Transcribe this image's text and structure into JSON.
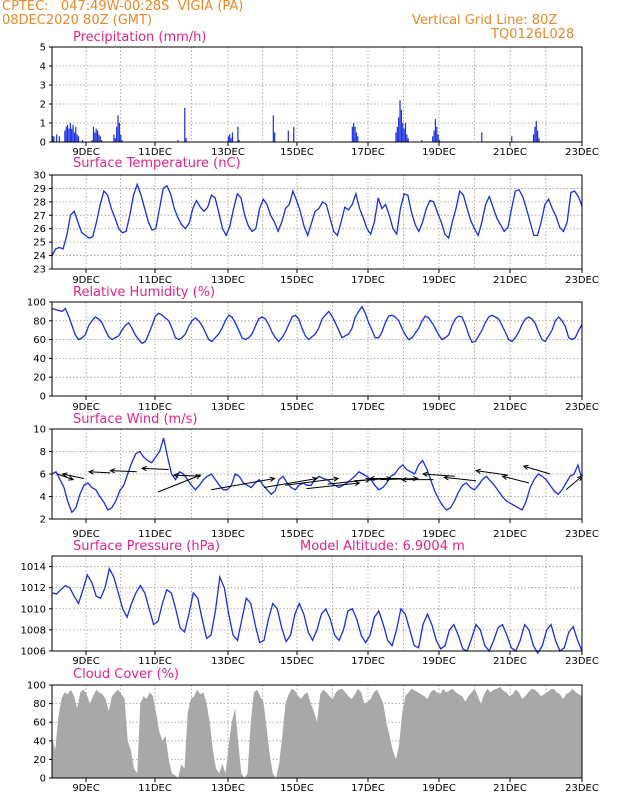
{
  "header": {
    "line1": "CPTEC:   047:49W-00:28S  VIGIA (PA)",
    "line2": "08DEC2020 80Z (GMT)",
    "right1": "Vertical Grid Line: 80Z",
    "right2": "TQ0126L028"
  },
  "x_ticks": [
    "9DEC",
    "11DEC",
    "13DEC",
    "15DEC",
    "17DEC",
    "19DEC",
    "21DEC",
    "23DEC"
  ],
  "chart_data": [
    {
      "type": "bar",
      "title": "Precipitation (mm/h)",
      "ylim": [
        0,
        5
      ],
      "yticks": [
        0,
        1,
        2,
        3,
        4,
        5
      ],
      "color": "#1a2fe0",
      "values": [
        0.3,
        0.3,
        0.0,
        0.4,
        0.0,
        0.3,
        0.0,
        0.0,
        0.0,
        0.6,
        0.8,
        0.9,
        0.7,
        1.0,
        0.7,
        0.9,
        0.5,
        0.8,
        0.4,
        0.3,
        0.0,
        0.0,
        0.1,
        0.0,
        0.0,
        0.0,
        0.0,
        0.0,
        0.0,
        0.1,
        0.8,
        0.5,
        0.7,
        0.6,
        0.4,
        0.3,
        0.1,
        0.0,
        0.0,
        0.0,
        0.0,
        0.0,
        0.0,
        0.0,
        0.0,
        0.4,
        0.2,
        0.8,
        1.4,
        1.0,
        0.4,
        0.1,
        0.0,
        0.0,
        0.0,
        0.0,
        0.0,
        0.0,
        0.0,
        0.0,
        0.0,
        0.0,
        0.0,
        0.0,
        0.0,
        0.0,
        0.0,
        0.0,
        0.0,
        0.0,
        0.0,
        0.0,
        0.0,
        0.0,
        0.0,
        0.0,
        0.0,
        0.0,
        0.0,
        0.0,
        0.0,
        0.0,
        0.0,
        0.0,
        0.0,
        0.0,
        0.0,
        0.0,
        0.0,
        0.0,
        0.0,
        0.0,
        0.1,
        0.0,
        0.0,
        0.0,
        0.0,
        1.8,
        0.2,
        0.0,
        0.0,
        0.0,
        0.0,
        0.0,
        0.0,
        0.0,
        0.0,
        0.0,
        0.0,
        0.0,
        0.0,
        0.0,
        0.0,
        0.0,
        0.0,
        0.0,
        0.0,
        0.0,
        0.0,
        0.0,
        0.0,
        0.0,
        0.0,
        0.0,
        0.0,
        0.0,
        0.0,
        0.0,
        0.0,
        0.3,
        0.4,
        0.2,
        0.5,
        0.0,
        0.0,
        0.0,
        0.8,
        0.1,
        0.0,
        0.0,
        0.0,
        0.0,
        0.0,
        0.0,
        0.0,
        0.0,
        0.0,
        0.0,
        0.0,
        0.0,
        0.0,
        0.0,
        0.0,
        0.0,
        0.0,
        0.0,
        0.0,
        0.0,
        0.0,
        0.0,
        0.0,
        0.0,
        1.4,
        0.5,
        0.0,
        0.0,
        0.0,
        0.0,
        0.0,
        0.0,
        0.0,
        0.0,
        0.0,
        0.6,
        0.0,
        0.0,
        0.0,
        0.8,
        0.0,
        0.0,
        0.0,
        0.0,
        0.0,
        0.0,
        0.0,
        0.0,
        0.0,
        0.0,
        0.0,
        0.0,
        0.0,
        0.0,
        0.0,
        0.0,
        0.0,
        0.0,
        0.0,
        0.0,
        0.0,
        0.0,
        0.0,
        0.0,
        0.0,
        0.0,
        0.0,
        0.0,
        0.0,
        0.0,
        0.0,
        0.0,
        0.0,
        0.0,
        0.0,
        0.0,
        0.0,
        0.0,
        0.0,
        0.0,
        0.0,
        0.0,
        0.8,
        1.0,
        0.8,
        0.5,
        0.3,
        0.0,
        0.0,
        0.0,
        0.0,
        0.0,
        0.0,
        0.0,
        0.0,
        0.0,
        0.0,
        0.0,
        0.0,
        0.0,
        0.0,
        0.0,
        0.0,
        0.0,
        0.0,
        0.0,
        0.0,
        0.0,
        0.0,
        0.0,
        0.0,
        0.0,
        0.0,
        0.0,
        0.5,
        0.8,
        1.3,
        2.2,
        1.7,
        1.0,
        0.7,
        1.0,
        0.4,
        0.2,
        0.0,
        0.0,
        0.0,
        0.0,
        0.0,
        0.0,
        0.0,
        0.0,
        0.0,
        0.1,
        0.0,
        0.0,
        0.0,
        0.0,
        0.0,
        0.0,
        0.0,
        0.3,
        0.6,
        1.2,
        0.8,
        0.4,
        0.1,
        0.0,
        0.0,
        0.0,
        0.0,
        0.0,
        0.0,
        0.0,
        0.0,
        0.0,
        0.0,
        0.0,
        0.0,
        0.0,
        0.0,
        0.0,
        0.0,
        0.0,
        0.0,
        0.0,
        0.0,
        0.0,
        0.0,
        0.0,
        0.0,
        0.0,
        0.0,
        0.0,
        0.0,
        0.0,
        0.0,
        0.5,
        0.0,
        0.0,
        0.0,
        0.0,
        0.0,
        0.0,
        0.0,
        0.0,
        0.0,
        0.0,
        0.0,
        0.0,
        0.0,
        0.0,
        0.0,
        0.0,
        0.0,
        0.0,
        0.0,
        0.0,
        0.0,
        0.3,
        0.0,
        0.0,
        0.0,
        0.0,
        0.0,
        0.0,
        0.0,
        0.0,
        0.0,
        0.0,
        0.0,
        0.0,
        0.0,
        0.0,
        0.0,
        0.4,
        0.8,
        1.1,
        0.6,
        0.2,
        0.0,
        0.0,
        0.0,
        0.0,
        0.0,
        0.0,
        0.0,
        0.0,
        0.0,
        0.0,
        0.0,
        0.0,
        0.0,
        0.0,
        0.0,
        0.0,
        0.0,
        0.0,
        0.0,
        0.0,
        0.0,
        0.0,
        0.0,
        0.0,
        0.0,
        0.0,
        0.0,
        0.0,
        0.0,
        0.0,
        0.0
      ]
    },
    {
      "type": "line",
      "title": "Surface Temperature (nC)",
      "ylim": [
        23,
        30
      ],
      "yticks": [
        23,
        24,
        25,
        26,
        27,
        28,
        29,
        30
      ],
      "color": "#1a2fe0",
      "values": [
        24.0,
        24.5,
        24.6,
        24.5,
        25.5,
        27.0,
        27.3,
        26.5,
        25.7,
        25.5,
        25.3,
        25.4,
        26.5,
        27.8,
        28.8,
        28.5,
        27.5,
        26.8,
        26.0,
        25.7,
        25.8,
        27.0,
        28.5,
        29.3,
        28.5,
        27.5,
        26.5,
        25.9,
        26.0,
        27.5,
        29.0,
        29.2,
        28.6,
        27.5,
        26.8,
        26.3,
        26.0,
        26.4,
        27.5,
        28.1,
        27.6,
        27.3,
        27.6,
        28.5,
        28.3,
        27.2,
        26.0,
        25.5,
        26.2,
        27.5,
        28.6,
        28.3,
        27.0,
        26.2,
        25.8,
        26.0,
        27.5,
        28.2,
        27.8,
        27.0,
        26.5,
        25.8,
        26.5,
        27.5,
        27.8,
        28.8,
        28.1,
        27.3,
        26.2,
        25.5,
        26.4,
        27.3,
        27.5,
        28.0,
        27.8,
        26.8,
        25.8,
        25.5,
        26.5,
        27.6,
        27.4,
        27.8,
        28.6,
        27.5,
        26.8,
        26.0,
        25.6,
        26.5,
        28.3,
        27.5,
        27.8,
        27.0,
        26.0,
        25.6,
        27.5,
        28.6,
        28.5,
        27.2,
        26.3,
        25.8,
        26.5,
        27.5,
        28.1,
        28.0,
        27.2,
        26.5,
        25.6,
        25.3,
        26.5,
        27.5,
        28.8,
        28.5,
        27.5,
        26.6,
        26.0,
        25.5,
        26.5,
        27.8,
        28.4,
        27.6,
        26.8,
        26.3,
        25.8,
        26.1,
        27.5,
        28.8,
        28.9,
        28.4,
        27.5,
        26.5,
        25.5,
        25.5,
        26.5,
        27.8,
        28.2,
        27.5,
        26.9,
        26.1,
        25.8,
        26.5,
        28.7,
        28.8,
        28.4,
        27.7
      ]
    },
    {
      "type": "line",
      "title": "Relative Humidity (%)",
      "ylim": [
        0,
        100
      ],
      "yticks": [
        0,
        20,
        40,
        60,
        80,
        100
      ],
      "color": "#1a2fe0",
      "values": [
        93,
        92,
        91,
        90,
        93,
        85,
        75,
        65,
        60,
        62,
        65,
        75,
        80,
        84,
        82,
        78,
        70,
        63,
        60,
        62,
        64,
        70,
        75,
        78,
        72,
        65,
        60,
        56,
        58,
        66,
        75,
        85,
        88,
        86,
        83,
        80,
        72,
        62,
        60,
        62,
        66,
        74,
        80,
        83,
        80,
        75,
        68,
        60,
        58,
        62,
        66,
        72,
        80,
        86,
        84,
        78,
        70,
        62,
        60,
        62,
        66,
        74,
        82,
        84,
        82,
        76,
        68,
        62,
        58,
        62,
        68,
        76,
        84,
        86,
        82,
        72,
        64,
        60,
        63,
        66,
        72,
        82,
        86,
        90,
        85,
        78,
        70,
        62,
        64,
        66,
        72,
        84,
        90,
        95,
        88,
        78,
        70,
        62,
        62,
        68,
        78,
        85,
        86,
        84,
        80,
        72,
        65,
        60,
        62,
        67,
        72,
        80,
        85,
        83,
        78,
        72,
        65,
        60,
        62,
        65,
        75,
        82,
        85,
        84,
        76,
        65,
        57,
        58,
        64,
        70,
        78,
        84,
        86,
        84,
        82,
        75,
        68,
        60,
        58,
        62,
        68,
        76,
        82,
        84,
        82,
        77,
        68,
        60,
        58,
        64,
        70,
        80,
        84,
        80,
        74,
        62,
        60,
        62,
        70,
        76
      ]
    },
    {
      "type": "line",
      "title": "Surface Wind (m/s)",
      "ylim": [
        2,
        10
      ],
      "yticks": [
        2,
        4,
        6,
        8,
        10
      ],
      "color": "#1a2fe0",
      "values": [
        6.0,
        6.2,
        5.5,
        4.8,
        3.5,
        2.6,
        3.0,
        4.2,
        5.0,
        5.2,
        4.8,
        4.6,
        4.0,
        3.5,
        2.8,
        3.0,
        3.6,
        4.5,
        5.0,
        6.0,
        7.0,
        7.8,
        8.0,
        7.5,
        7.2,
        7.0,
        7.5,
        8.0,
        9.2,
        7.5,
        6.0,
        5.5,
        6.2,
        6.0,
        5.5,
        5.0,
        4.6,
        5.0,
        5.5,
        5.8,
        6.0,
        5.5,
        5.0,
        4.6,
        4.6,
        5.0,
        6.0,
        5.8,
        5.2,
        5.0,
        4.8,
        5.2,
        5.5,
        5.0,
        4.6,
        4.2,
        4.5,
        5.5,
        5.8,
        5.2,
        4.8,
        4.6,
        5.0,
        5.2,
        5.0,
        5.0,
        5.5,
        5.8,
        5.6,
        5.5,
        5.2,
        5.0,
        4.8,
        5.0,
        5.2,
        5.5,
        5.8,
        6.2,
        6.0,
        5.8,
        5.5,
        5.0,
        4.6,
        4.8,
        5.2,
        5.8,
        6.0,
        6.5,
        6.8,
        6.4,
        6.2,
        6.0,
        6.8,
        7.2,
        6.5,
        5.5,
        4.5,
        3.8,
        3.2,
        2.8,
        3.0,
        3.6,
        4.4,
        5.0,
        5.2,
        4.8,
        4.6,
        5.0,
        5.5,
        5.8,
        5.4,
        5.0,
        4.5,
        4.0,
        3.6,
        3.4,
        3.2,
        3.0,
        2.8,
        3.6,
        4.8,
        5.5,
        6.0,
        5.8,
        5.5,
        5.0,
        4.5,
        4.2,
        4.6,
        5.2,
        5.8,
        6.0,
        6.8,
        5.5
      ]
    },
    {
      "type": "line",
      "title": "Surface Pressure (hPa)",
      "subtitle": "Model Altitude: 6.9004 m",
      "ylim": [
        1006,
        1015
      ],
      "yticks": [
        1006,
        1008,
        1010,
        1012,
        1014
      ],
      "color": "#1a2fe0",
      "values": [
        1011.5,
        1011.4,
        1011.8,
        1012.2,
        1012.0,
        1011.2,
        1010.5,
        1011.8,
        1013.2,
        1012.5,
        1011.2,
        1011.0,
        1012.0,
        1013.8,
        1013.0,
        1011.5,
        1010.0,
        1009.2,
        1010.5,
        1011.5,
        1012.2,
        1011.5,
        1010.0,
        1008.5,
        1008.8,
        1010.5,
        1011.8,
        1011.5,
        1010.0,
        1008.2,
        1007.8,
        1009.5,
        1011.5,
        1011.0,
        1009.0,
        1007.2,
        1007.5,
        1009.8,
        1013.0,
        1012.0,
        1009.5,
        1007.5,
        1007.0,
        1009.0,
        1011.0,
        1010.5,
        1008.5,
        1006.8,
        1007.0,
        1009.0,
        1010.5,
        1010.0,
        1008.2,
        1006.9,
        1007.5,
        1009.5,
        1010.5,
        1009.5,
        1007.8,
        1007.0,
        1008.0,
        1009.5,
        1010.0,
        1009.0,
        1007.5,
        1007.0,
        1008.0,
        1009.8,
        1010.0,
        1009.0,
        1007.5,
        1006.8,
        1007.5,
        1009.2,
        1009.8,
        1008.5,
        1007.0,
        1006.5,
        1008.0,
        1010.0,
        1009.5,
        1008.0,
        1006.5,
        1006.3,
        1008.5,
        1009.5,
        1008.5,
        1007.0,
        1006.2,
        1006.5,
        1008.0,
        1008.5,
        1007.5,
        1006.2,
        1006.0,
        1007.2,
        1008.5,
        1008.0,
        1006.5,
        1006.0,
        1007.0,
        1008.2,
        1008.5,
        1007.5,
        1006.3,
        1006.0,
        1007.0,
        1008.5,
        1008.0,
        1006.5,
        1005.8,
        1006.5,
        1008.0,
        1008.5,
        1007.0,
        1006.0,
        1006.3,
        1007.8,
        1008.3,
        1007.0,
        1006.0
      ]
    },
    {
      "type": "area",
      "title": "Cloud Cover (%)",
      "ylim": [
        0,
        100
      ],
      "yticks": [
        0,
        20,
        40,
        60,
        80,
        100
      ],
      "color": "#a8a8a8",
      "values": [
        45,
        30,
        65,
        85,
        92,
        90,
        95,
        88,
        75,
        92,
        95,
        90,
        80,
        88,
        95,
        92,
        90,
        85,
        72,
        88,
        92,
        95,
        90,
        85,
        40,
        30,
        10,
        5,
        80,
        88,
        85,
        92,
        88,
        70,
        50,
        40,
        45,
        20,
        5,
        3,
        0,
        15,
        10,
        70,
        85,
        88,
        95,
        90,
        92,
        80,
        60,
        30,
        10,
        5,
        15,
        5,
        35,
        60,
        75,
        40,
        5,
        0,
        5,
        60,
        92,
        95,
        88,
        82,
        55,
        25,
        5,
        0,
        15,
        45,
        80,
        90,
        96,
        94,
        88,
        85,
        90,
        92,
        80,
        72,
        60,
        90,
        95,
        92,
        88,
        85,
        92,
        95,
        96,
        92,
        88,
        85,
        90,
        96,
        92,
        80,
        82,
        85,
        92,
        95,
        88,
        80,
        60,
        45,
        30,
        20,
        35,
        70,
        88,
        92,
        96,
        94,
        92,
        90,
        88,
        85,
        92,
        95,
        92,
        90,
        96,
        92,
        94,
        96,
        92,
        90,
        88,
        82,
        88,
        92,
        96,
        88,
        80,
        90,
        96,
        92,
        95,
        96,
        98,
        94,
        92,
        88,
        90,
        95,
        92,
        85,
        88,
        92,
        96,
        95,
        92,
        88,
        90,
        92,
        95,
        96,
        92,
        90,
        85,
        90,
        92,
        96,
        92,
        90,
        88
      ]
    },
    {
      "type": "vector",
      "title": "Surface Wind (m/s) direction arrows",
      "arrows": [
        {
          "x": 0.01,
          "y": 6.0,
          "dx": 0.03,
          "dy": -0.5
        },
        {
          "x": 0.06,
          "y": 5.6,
          "dx": -0.04,
          "dy": 0.4
        },
        {
          "x": 0.11,
          "y": 6.1,
          "dx": -0.04,
          "dy": 0.1
        },
        {
          "x": 0.16,
          "y": 6.2,
          "dx": -0.05,
          "dy": 0.1
        },
        {
          "x": 0.22,
          "y": 6.4,
          "dx": -0.05,
          "dy": 0.1
        },
        {
          "x": 0.28,
          "y": 5.8,
          "dx": -0.05,
          "dy": 0.1
        },
        {
          "x": 0.2,
          "y": 4.4,
          "dx": 0.08,
          "dy": 1.5
        },
        {
          "x": 0.3,
          "y": 4.6,
          "dx": 0.12,
          "dy": 1.0
        },
        {
          "x": 0.4,
          "y": 4.8,
          "dx": 0.1,
          "dy": 0.8
        },
        {
          "x": 0.44,
          "y": 5.0,
          "dx": 0.1,
          "dy": 0.6
        },
        {
          "x": 0.48,
          "y": 4.7,
          "dx": 0.1,
          "dy": 0.5
        },
        {
          "x": 0.52,
          "y": 5.1,
          "dx": 0.08,
          "dy": 0.4
        },
        {
          "x": 0.57,
          "y": 5.4,
          "dx": 0.07,
          "dy": 0.2
        },
        {
          "x": 0.62,
          "y": 5.5,
          "dx": 0.07,
          "dy": 0.1
        },
        {
          "x": 0.66,
          "y": 5.6,
          "dx": -0.06,
          "dy": 0.0
        },
        {
          "x": 0.72,
          "y": 5.5,
          "dx": -0.06,
          "dy": 0.0
        },
        {
          "x": 0.76,
          "y": 5.8,
          "dx": -0.06,
          "dy": 0.2
        },
        {
          "x": 0.8,
          "y": 5.4,
          "dx": -0.06,
          "dy": 0.3
        },
        {
          "x": 0.86,
          "y": 5.9,
          "dx": -0.06,
          "dy": 0.4
        },
        {
          "x": 0.9,
          "y": 5.2,
          "dx": -0.05,
          "dy": 0.6
        },
        {
          "x": 0.94,
          "y": 6.0,
          "dx": -0.05,
          "dy": 0.7
        },
        {
          "x": 0.97,
          "y": 4.6,
          "dx": 0.03,
          "dy": 1.2
        }
      ]
    }
  ]
}
